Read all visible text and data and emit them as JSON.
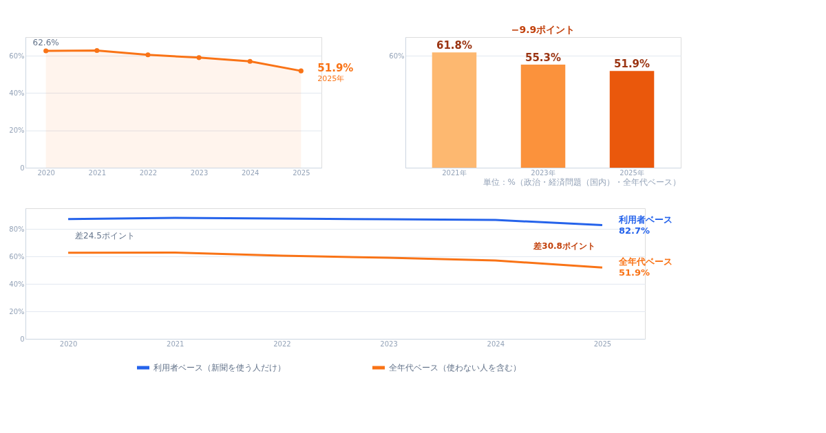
{
  "chart_data": [
    {
      "type": "area",
      "categories": [
        "2020",
        "2021",
        "2022",
        "2023",
        "2024",
        "2025"
      ],
      "series": [
        {
          "color": "#f97316",
          "values": [
            62.6,
            62.8,
            60.5,
            59,
            57,
            51.9
          ],
          "value_labels": [
            "62.6%",
            null,
            null,
            null,
            null,
            "51.9%"
          ]
        }
      ],
      "ylim": [
        0,
        70
      ],
      "yticks": [
        0,
        {
          "value": 20,
          "label": "20%"
        },
        {
          "value": 40,
          "label": "40%"
        },
        {
          "value": 60,
          "label": "60%"
        }
      ],
      "grid": "y",
      "marker": "circle",
      "annotations": [
        {
          "text": "2025年",
          "x": "2025",
          "y": 51.9
        }
      ]
    },
    {
      "type": "bar",
      "categories": [
        "2021年",
        "2023年",
        "2025年"
      ],
      "values": [
        61.8,
        55.3,
        51.9
      ],
      "colors": [
        "#fdb870",
        "#fb923c",
        "#ea580c"
      ],
      "value_labels": [
        "61.8%",
        "55.3%",
        "51.9%"
      ],
      "ylim": [
        0,
        70
      ],
      "yticks": [
        {
          "value": 60,
          "label": "60%"
        }
      ],
      "grid": "y",
      "annotations": [
        "−9.9ポイント",
        "単位：%（政治・経済問題（国内）・全年代ベース）"
      ]
    },
    {
      "type": "line",
      "categories": [
        "2020",
        "2021",
        "2022",
        "2023",
        "2024",
        "2025"
      ],
      "series": [
        {
          "name": "利用者ベース（新聞を使う人だけ）",
          "color": "#2563eb",
          "values": [
            87.1,
            88,
            87.5,
            87,
            86.5,
            82.7
          ],
          "value_labels": [
            null,
            null,
            null,
            null,
            null,
            "82.7%"
          ]
        },
        {
          "name": "全年代ベース（使わない人を含む）",
          "color": "#f97316",
          "values": [
            62.6,
            62.8,
            60.5,
            59,
            57,
            51.9
          ],
          "value_labels": [
            null,
            null,
            null,
            null,
            null,
            "51.9%"
          ]
        }
      ],
      "ylim": [
        0,
        95
      ],
      "yticks": [
        0,
        {
          "value": 20,
          "label": "20%"
        },
        {
          "value": 40,
          "label": "40%"
        },
        {
          "value": 60,
          "label": "60%"
        },
        {
          "value": 80,
          "label": "80%"
        }
      ],
      "grid": "y",
      "marker": "none",
      "legend": "bottom",
      "annotations": [
        "差24.5ポイント",
        "差30.8ポイント",
        {
          "text": "利用者ベース",
          "x": "2025",
          "y": 82.7
        },
        {
          "text": "全年代ベース",
          "x": "2025",
          "y": 51.9
        }
      ]
    }
  ]
}
